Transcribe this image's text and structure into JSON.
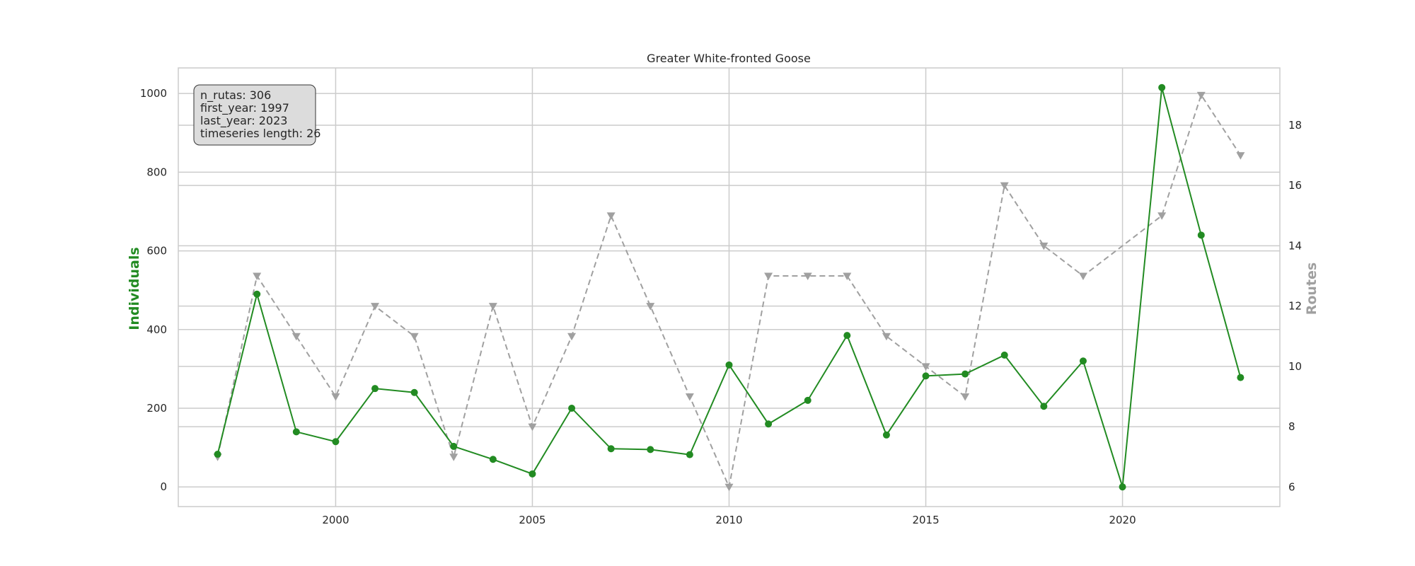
{
  "chart_data": {
    "type": "line",
    "title": "Greater White-fronted Goose",
    "ylabel": "Individuals",
    "ylabel_right": "Routes",
    "xlabel": "",
    "xlim": [
      1996,
      2024
    ],
    "ylim": [
      -50,
      1065
    ],
    "ylim_right": [
      5.35,
      19.9
    ],
    "xticks": [
      2000,
      2005,
      2010,
      2015,
      2020
    ],
    "yticks": [
      0,
      200,
      400,
      600,
      800,
      1000
    ],
    "yticks_right": [
      6,
      8,
      10,
      12,
      14,
      16,
      18
    ],
    "grid": true,
    "x": [
      1997,
      1998,
      1999,
      2000,
      2001,
      2002,
      2003,
      2004,
      2005,
      2006,
      2007,
      2008,
      2009,
      2010,
      2011,
      2012,
      2013,
      2014,
      2015,
      2016,
      2017,
      2018,
      2019,
      2020,
      2021,
      2022,
      2023
    ],
    "series": [
      {
        "axis": "left",
        "color": "#228B22",
        "marker": "circle",
        "linestyle": "solid",
        "values": [
          83,
          490,
          140,
          115,
          250,
          240,
          103,
          70,
          33,
          200,
          97,
          95,
          82,
          310,
          160,
          220,
          385,
          132,
          282,
          287,
          335,
          205,
          320,
          0,
          1015,
          640,
          278
        ]
      },
      {
        "axis": "right",
        "color": "#a0a0a0",
        "marker": "triangle-down",
        "linestyle": "dashed",
        "values": [
          7,
          13,
          11,
          9,
          12,
          11,
          7,
          12,
          8,
          11,
          15,
          12,
          9,
          6,
          13,
          13,
          13,
          11,
          10,
          9,
          16,
          14,
          13,
          null,
          15,
          19,
          17
        ]
      }
    ],
    "annotation_lines": [
      "n_rutas: 306",
      "first_year: 1997",
      "last_year: 2023",
      "timeseries length: 26"
    ]
  }
}
